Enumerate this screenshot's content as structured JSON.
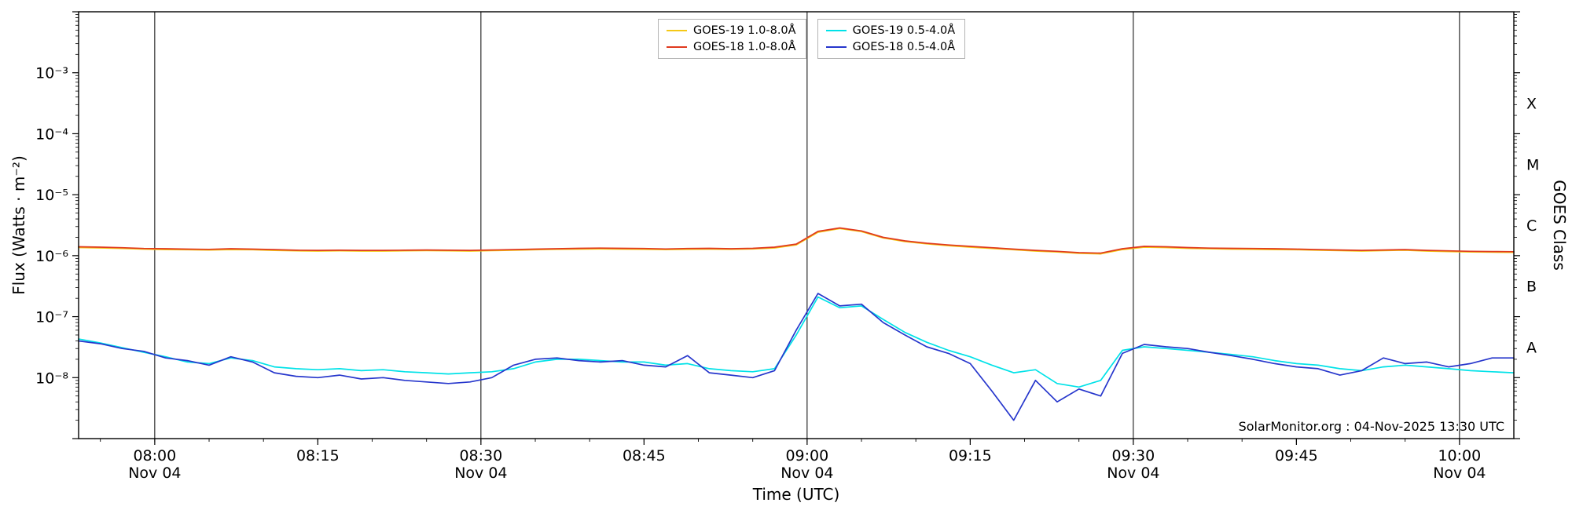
{
  "chart_data": {
    "type": "line",
    "title": "",
    "xlabel": "Time (UTC)",
    "ylabel": "Flux (Watts · m⁻²)",
    "ylabel_right": "GOES Class",
    "annotation": "SolarMonitor.org : 04-Nov-2025 13:30 UTC",
    "x_unit": "decimal_hours_utc",
    "xlim": [
      7.8833,
      10.0833
    ],
    "ylim_log10": [
      -9,
      -2
    ],
    "grid": "vertical-black-lines-at-major-ticks",
    "legend_position": "top-center-two-boxes",
    "x_ticks": [
      {
        "hour": 8.0,
        "label": "08:00",
        "sublabel": "Nov 04",
        "gridline": true
      },
      {
        "hour": 8.25,
        "label": "08:15"
      },
      {
        "hour": 8.5,
        "label": "08:30",
        "sublabel": "Nov 04",
        "gridline": true
      },
      {
        "hour": 8.75,
        "label": "08:45"
      },
      {
        "hour": 9.0,
        "label": "09:00",
        "sublabel": "Nov 04",
        "gridline": true
      },
      {
        "hour": 9.25,
        "label": "09:15"
      },
      {
        "hour": 9.5,
        "label": "09:30",
        "sublabel": "Nov 04",
        "gridline": true
      },
      {
        "hour": 9.75,
        "label": "09:45"
      },
      {
        "hour": 10.0,
        "label": "10:00",
        "sublabel": "Nov 04",
        "gridline": true
      }
    ],
    "y_ticks": [
      {
        "exp": -3,
        "label": "10⁻³"
      },
      {
        "exp": -4,
        "label": "10⁻⁴"
      },
      {
        "exp": -5,
        "label": "10⁻⁵"
      },
      {
        "exp": -6,
        "label": "10⁻⁶"
      },
      {
        "exp": -7,
        "label": "10⁻⁷"
      },
      {
        "exp": -8,
        "label": "10⁻⁸"
      }
    ],
    "goes_classes": [
      {
        "label": "X",
        "log10": -3.5
      },
      {
        "label": "M",
        "log10": -4.5
      },
      {
        "label": "C",
        "log10": -5.5
      },
      {
        "label": "B",
        "log10": -6.5
      },
      {
        "label": "A",
        "log10": -7.5
      }
    ],
    "x_hours": [
      7.8833,
      7.9167,
      7.95,
      7.9833,
      8.0167,
      8.05,
      8.0833,
      8.1167,
      8.15,
      8.1833,
      8.2167,
      8.25,
      8.2833,
      8.3167,
      8.35,
      8.3833,
      8.4167,
      8.45,
      8.4833,
      8.5167,
      8.55,
      8.5833,
      8.6167,
      8.65,
      8.6833,
      8.7167,
      8.75,
      8.7833,
      8.8167,
      8.85,
      8.8833,
      8.9167,
      8.95,
      8.9833,
      9.0167,
      9.05,
      9.0833,
      9.1167,
      9.15,
      9.1833,
      9.2167,
      9.25,
      9.2833,
      9.3167,
      9.35,
      9.3833,
      9.4167,
      9.45,
      9.4833,
      9.5167,
      9.55,
      9.5833,
      9.6167,
      9.65,
      9.6833,
      9.7167,
      9.75,
      9.7833,
      9.8167,
      9.85,
      9.8833,
      9.9167,
      9.95,
      9.9833,
      10.0167,
      10.05,
      10.0833
    ],
    "series": [
      {
        "name": "GOES-19 1.0-8.0Å",
        "color": "#f5c816",
        "y": [
          1.36e-06,
          1.34e-06,
          1.31e-06,
          1.28e-06,
          1.26e-06,
          1.25e-06,
          1.24e-06,
          1.26e-06,
          1.25e-06,
          1.22e-06,
          1.2e-06,
          1.19e-06,
          1.2e-06,
          1.19e-06,
          1.19e-06,
          1.2e-06,
          1.21e-06,
          1.2e-06,
          1.19e-06,
          1.21e-06,
          1.23e-06,
          1.25e-06,
          1.27e-06,
          1.28e-06,
          1.29e-06,
          1.28e-06,
          1.27e-06,
          1.26e-06,
          1.27e-06,
          1.28e-06,
          1.27e-06,
          1.29e-06,
          1.34e-06,
          1.5e-06,
          2.42e-06,
          2.78e-06,
          2.48e-06,
          1.95e-06,
          1.7e-06,
          1.56e-06,
          1.46e-06,
          1.38e-06,
          1.31e-06,
          1.25e-06,
          1.19e-06,
          1.15e-06,
          1.09e-06,
          1.07e-06,
          1.26e-06,
          1.38e-06,
          1.36e-06,
          1.32e-06,
          1.3e-06,
          1.28e-06,
          1.27e-06,
          1.26e-06,
          1.25e-06,
          1.23e-06,
          1.21e-06,
          1.19e-06,
          1.21e-06,
          1.23e-06,
          1.19e-06,
          1.17e-06,
          1.15e-06,
          1.14e-06,
          1.13e-06
        ]
      },
      {
        "name": "GOES-18 1.0-8.0Å",
        "color": "#e0391e",
        "y": [
          1.4e-06,
          1.38e-06,
          1.35e-06,
          1.31e-06,
          1.3e-06,
          1.28e-06,
          1.27e-06,
          1.3e-06,
          1.28e-06,
          1.26e-06,
          1.23e-06,
          1.22e-06,
          1.23e-06,
          1.22e-06,
          1.22e-06,
          1.23e-06,
          1.24e-06,
          1.23e-06,
          1.22e-06,
          1.24e-06,
          1.26e-06,
          1.28e-06,
          1.3e-06,
          1.32e-06,
          1.33e-06,
          1.32e-06,
          1.31e-06,
          1.29e-06,
          1.31e-06,
          1.32e-06,
          1.3e-06,
          1.32e-06,
          1.38e-06,
          1.55e-06,
          2.5e-06,
          2.85e-06,
          2.55e-06,
          2e-06,
          1.75e-06,
          1.6e-06,
          1.5e-06,
          1.42e-06,
          1.35e-06,
          1.28e-06,
          1.22e-06,
          1.18e-06,
          1.12e-06,
          1.1e-06,
          1.3e-06,
          1.42e-06,
          1.4e-06,
          1.36e-06,
          1.33e-06,
          1.32e-06,
          1.31e-06,
          1.3e-06,
          1.28e-06,
          1.26e-06,
          1.24e-06,
          1.22e-06,
          1.24e-06,
          1.26e-06,
          1.22e-06,
          1.2e-06,
          1.18e-06,
          1.17e-06,
          1.16e-06
        ]
      },
      {
        "name": "GOES-19 0.5-4.0Å",
        "color": "#00e2e8",
        "y": [
          4.3e-08,
          3.7e-08,
          3.1e-08,
          2.6e-08,
          2.2e-08,
          1.8e-08,
          1.7e-08,
          2.1e-08,
          1.9e-08,
          1.5e-08,
          1.4e-08,
          1.35e-08,
          1.4e-08,
          1.3e-08,
          1.35e-08,
          1.25e-08,
          1.2e-08,
          1.15e-08,
          1.2e-08,
          1.25e-08,
          1.4e-08,
          1.8e-08,
          2e-08,
          2e-08,
          1.9e-08,
          1.8e-08,
          1.8e-08,
          1.6e-08,
          1.7e-08,
          1.4e-08,
          1.3e-08,
          1.25e-08,
          1.4e-08,
          5e-08,
          2.1e-07,
          1.4e-07,
          1.5e-07,
          9e-08,
          5.5e-08,
          3.8e-08,
          2.8e-08,
          2.2e-08,
          1.6e-08,
          1.2e-08,
          1.35e-08,
          8e-09,
          7e-09,
          9e-09,
          2.8e-08,
          3.2e-08,
          3e-08,
          2.8e-08,
          2.6e-08,
          2.4e-08,
          2.2e-08,
          1.9e-08,
          1.7e-08,
          1.6e-08,
          1.4e-08,
          1.3e-08,
          1.5e-08,
          1.6e-08,
          1.5e-08,
          1.4e-08,
          1.3e-08,
          1.25e-08,
          1.2e-08
        ]
      },
      {
        "name": "GOES-18 0.5-4.0Å",
        "color": "#2636cc",
        "y": [
          4e-08,
          3.6e-08,
          3e-08,
          2.7e-08,
          2.1e-08,
          1.9e-08,
          1.6e-08,
          2.2e-08,
          1.8e-08,
          1.2e-08,
          1.05e-08,
          1e-08,
          1.1e-08,
          9.5e-09,
          1e-08,
          9e-09,
          8.5e-09,
          8e-09,
          8.5e-09,
          1e-08,
          1.6e-08,
          2e-08,
          2.1e-08,
          1.9e-08,
          1.8e-08,
          1.9e-08,
          1.6e-08,
          1.5e-08,
          2.3e-08,
          1.2e-08,
          1.1e-08,
          1e-08,
          1.3e-08,
          6e-08,
          2.4e-07,
          1.5e-07,
          1.6e-07,
          8e-08,
          5e-08,
          3.2e-08,
          2.5e-08,
          1.7e-08,
          6e-09,
          2e-09,
          9e-09,
          4e-09,
          6.5e-09,
          5e-09,
          2.5e-08,
          3.5e-08,
          3.2e-08,
          3e-08,
          2.6e-08,
          2.3e-08,
          2e-08,
          1.7e-08,
          1.5e-08,
          1.4e-08,
          1.1e-08,
          1.3e-08,
          2.1e-08,
          1.7e-08,
          1.8e-08,
          1.5e-08,
          1.7e-08,
          2.1e-08,
          2.1e-08
        ]
      }
    ]
  }
}
